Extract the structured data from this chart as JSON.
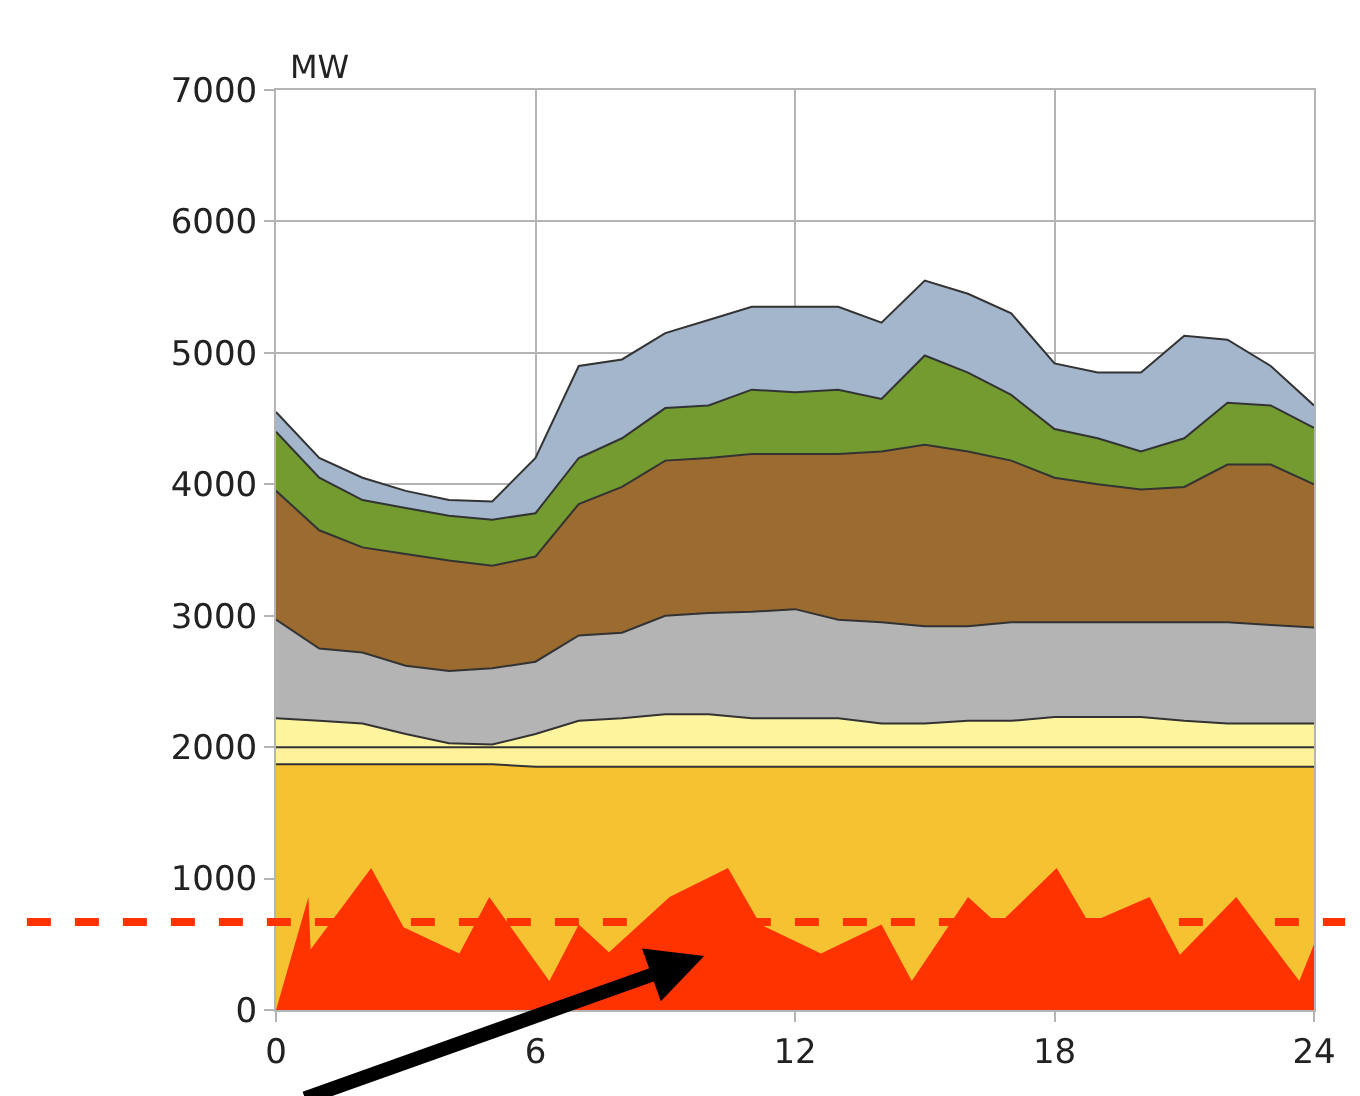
{
  "chart_data": {
    "type": "area",
    "ylabel": "MW",
    "x": [
      0,
      1,
      2,
      3,
      4,
      5,
      6,
      7,
      8,
      9,
      10,
      11,
      12,
      13,
      14,
      15,
      16,
      17,
      18,
      19,
      20,
      21,
      22,
      23,
      24
    ],
    "series": [
      {
        "color": "#a3b6cc",
        "values": [
          4550,
          4200,
          4050,
          3950,
          3880,
          3870,
          4200,
          4900,
          4950,
          5150,
          5250,
          5350,
          5350,
          5350,
          5230,
          5550,
          5450,
          5300,
          4920,
          4850,
          4850,
          5130,
          5100,
          4900,
          4600
        ]
      },
      {
        "color": "#739b30",
        "values": [
          4400,
          4050,
          3880,
          3820,
          3760,
          3730,
          3780,
          4200,
          4350,
          4580,
          4600,
          4720,
          4700,
          4720,
          4650,
          4980,
          4850,
          4680,
          4420,
          4350,
          4250,
          4350,
          4620,
          4600,
          4430
        ]
      },
      {
        "color": "#9b6b30",
        "values": [
          3950,
          3650,
          3520,
          3470,
          3420,
          3380,
          3450,
          3850,
          3980,
          4180,
          4200,
          4230,
          4230,
          4230,
          4250,
          4300,
          4250,
          4180,
          4050,
          4000,
          3960,
          3980,
          4150,
          4150,
          4000
        ]
      },
      {
        "color": "#b4b4b4",
        "values": [
          2970,
          2750,
          2720,
          2620,
          2580,
          2600,
          2650,
          2850,
          2870,
          3000,
          3020,
          3030,
          3050,
          2970,
          2950,
          2920,
          2920,
          2950,
          2950,
          2950,
          2950,
          2950,
          2950,
          2930,
          2910
        ]
      },
      {
        "color": "#fff59e",
        "values": [
          2220,
          2200,
          2180,
          2100,
          2030,
          2020,
          2100,
          2200,
          2220,
          2250,
          2250,
          2220,
          2220,
          2220,
          2180,
          2180,
          2200,
          2200,
          2230,
          2230,
          2230,
          2200,
          2180,
          2180,
          2180
        ]
      },
      {
        "color": "#fff29a",
        "values": [
          2000,
          2000,
          2000,
          2000,
          2000,
          2000,
          2000,
          2000,
          2000,
          2000,
          2000,
          2000,
          2000,
          2000,
          2000,
          2000,
          2000,
          2000,
          2000,
          2000,
          2000,
          2000,
          2000,
          2000,
          2000
        ]
      },
      {
        "color": "#f5c232",
        "values": [
          1870,
          1870,
          1870,
          1870,
          1870,
          1870,
          1850,
          1850,
          1850,
          1850,
          1850,
          1850,
          1850,
          1850,
          1850,
          1850,
          1850,
          1850,
          1850,
          1850,
          1850,
          1850,
          1850,
          1850,
          1850
        ]
      },
      {
        "color": "#ff3300",
        "x": [
          0,
          0.75,
          0.8,
          2.2,
          2.95,
          4.24,
          4.93,
          6.32,
          7.0,
          7.7,
          9.1,
          10.45,
          11.2,
          12.6,
          14.0,
          14.7,
          16.0,
          16.7,
          18.05,
          18.8,
          20.2,
          20.9,
          22.2,
          23.66,
          24
        ],
        "values": [
          0,
          860,
          460,
          1080,
          630,
          430,
          860,
          220,
          650,
          440,
          860,
          1080,
          650,
          430,
          650,
          220,
          860,
          650,
          1080,
          660,
          860,
          420,
          860,
          220,
          500
        ]
      }
    ],
    "xlim": [
      0,
      24
    ],
    "xticks": [
      0,
      6,
      12,
      18,
      24
    ],
    "ylim": [
      0,
      7000
    ],
    "yticks": [
      0,
      1000,
      2000,
      3000,
      4000,
      5000,
      6000,
      7000
    ],
    "grid": true,
    "ref_lines": [
      {
        "axis": "y",
        "value": 670,
        "color": "#ff3300",
        "line_style": "dashed"
      }
    ]
  }
}
